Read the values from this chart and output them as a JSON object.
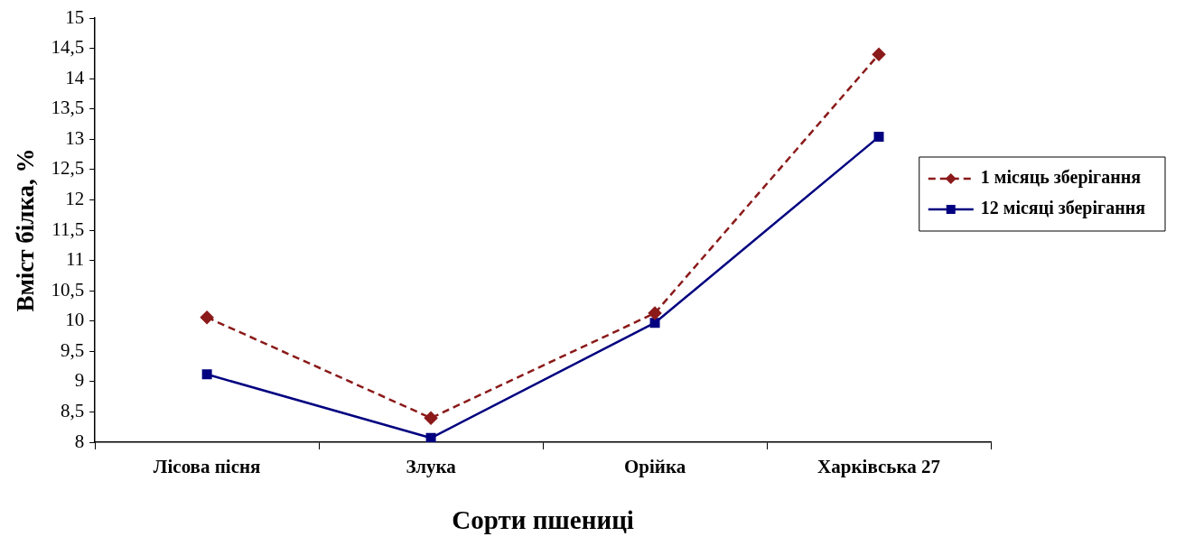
{
  "chart_data": {
    "type": "line",
    "xlabel": "Сорти пшениці",
    "ylabel": "Вміст білка, %",
    "categories": [
      "Лісова пісня",
      "Злука",
      "Орійка",
      "Харківська 27"
    ],
    "series": [
      {
        "name": "1 місяць зберігання",
        "color": "#8b1a1a",
        "values": [
          10.06,
          8.4,
          10.13,
          14.4
        ],
        "marker": "diamond",
        "line_style": "dashed"
      },
      {
        "name": "12 місяці зберігання",
        "color": "#000080",
        "values": [
          9.12,
          8.07,
          9.97,
          13.04
        ],
        "marker": "square",
        "line_style": "solid"
      }
    ],
    "ylim": [
      8,
      15
    ],
    "yticks": [
      8,
      {
        "value": 8.5,
        "label": "8,5"
      },
      9,
      {
        "value": 9.5,
        "label": "9,5"
      },
      10,
      {
        "value": 10.5,
        "label": "10,5"
      },
      11,
      {
        "value": 11.5,
        "label": "11,5"
      },
      12,
      {
        "value": 12.5,
        "label": "12,5"
      },
      13,
      {
        "value": 13.5,
        "label": "13,5"
      },
      14,
      {
        "value": 14.5,
        "label": "14,5"
      },
      15
    ],
    "grid": false,
    "legend": "right"
  }
}
